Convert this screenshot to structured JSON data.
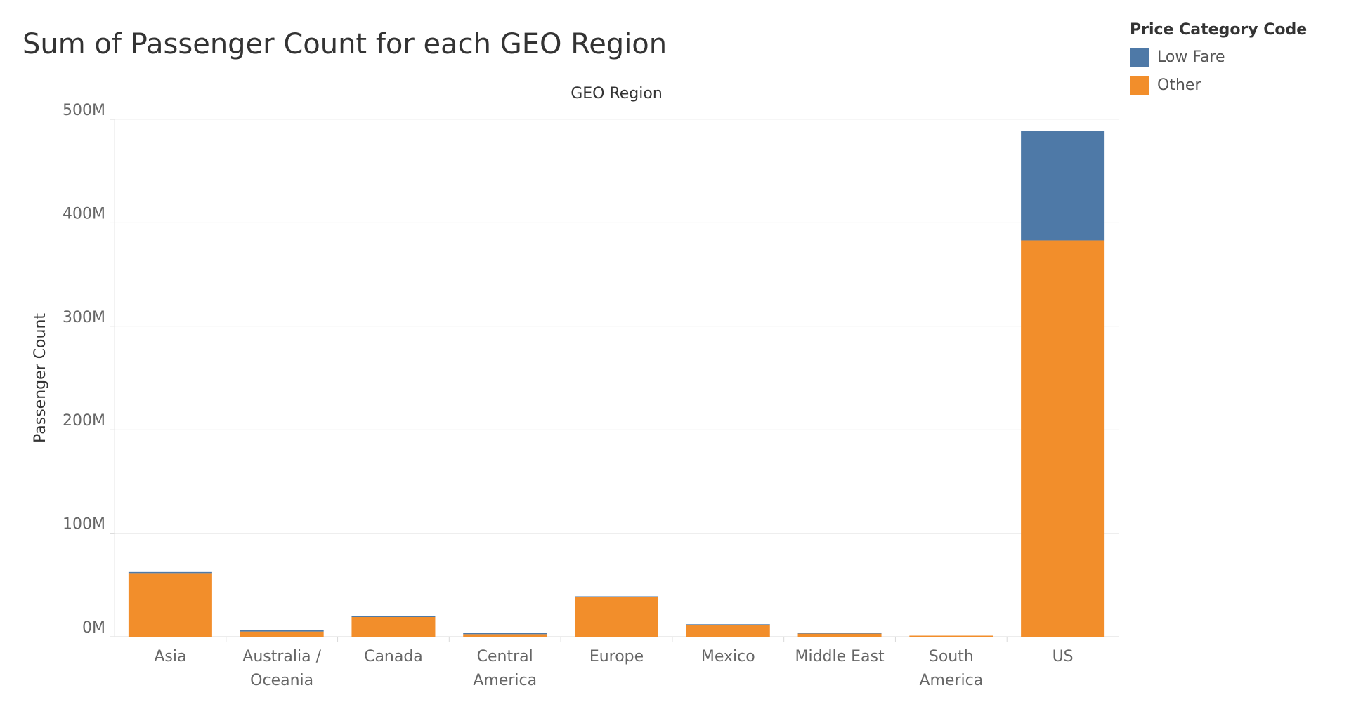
{
  "title": "Sum of Passenger Count for each GEO Region",
  "legend": {
    "title": "Price Category Code",
    "items": [
      {
        "label": "Low Fare",
        "color": "#4e79a7"
      },
      {
        "label": "Other",
        "color": "#f28e2b"
      }
    ]
  },
  "chart_data": {
    "type": "bar",
    "stacked": true,
    "xlabel": "GEO Region",
    "ylabel": "Passenger Count",
    "ylim": [
      0,
      500000000
    ],
    "y_ticks": [
      {
        "value": 0,
        "label": "0M"
      },
      {
        "value": 100000000,
        "label": "100M"
      },
      {
        "value": 200000000,
        "label": "200M"
      },
      {
        "value": 300000000,
        "label": "300M"
      },
      {
        "value": 400000000,
        "label": "400M"
      },
      {
        "value": 500000000,
        "label": "500M"
      }
    ],
    "categories": [
      "Asia",
      "Australia / Oceania",
      "Canada",
      "Central America",
      "Europe",
      "Mexico",
      "Middle East",
      "South America",
      "US"
    ],
    "category_label_lines": [
      [
        "Asia"
      ],
      [
        "Australia /",
        "Oceania"
      ],
      [
        "Canada"
      ],
      [
        "Central",
        "America"
      ],
      [
        "Europe"
      ],
      [
        "Mexico"
      ],
      [
        "Middle East"
      ],
      [
        "South",
        "America"
      ],
      [
        "US"
      ]
    ],
    "series": [
      {
        "name": "Other",
        "color": "#f28e2b",
        "values": [
          61500000,
          5000000,
          19000000,
          2500000,
          38000000,
          11000000,
          3000000,
          500000,
          383000000
        ]
      },
      {
        "name": "Low Fare",
        "color": "#4e79a7",
        "values": [
          500000,
          1200000,
          1000000,
          300000,
          1000000,
          1000000,
          1000000,
          0,
          106000000
        ]
      }
    ],
    "grid": true,
    "legend_position": "top-right"
  }
}
